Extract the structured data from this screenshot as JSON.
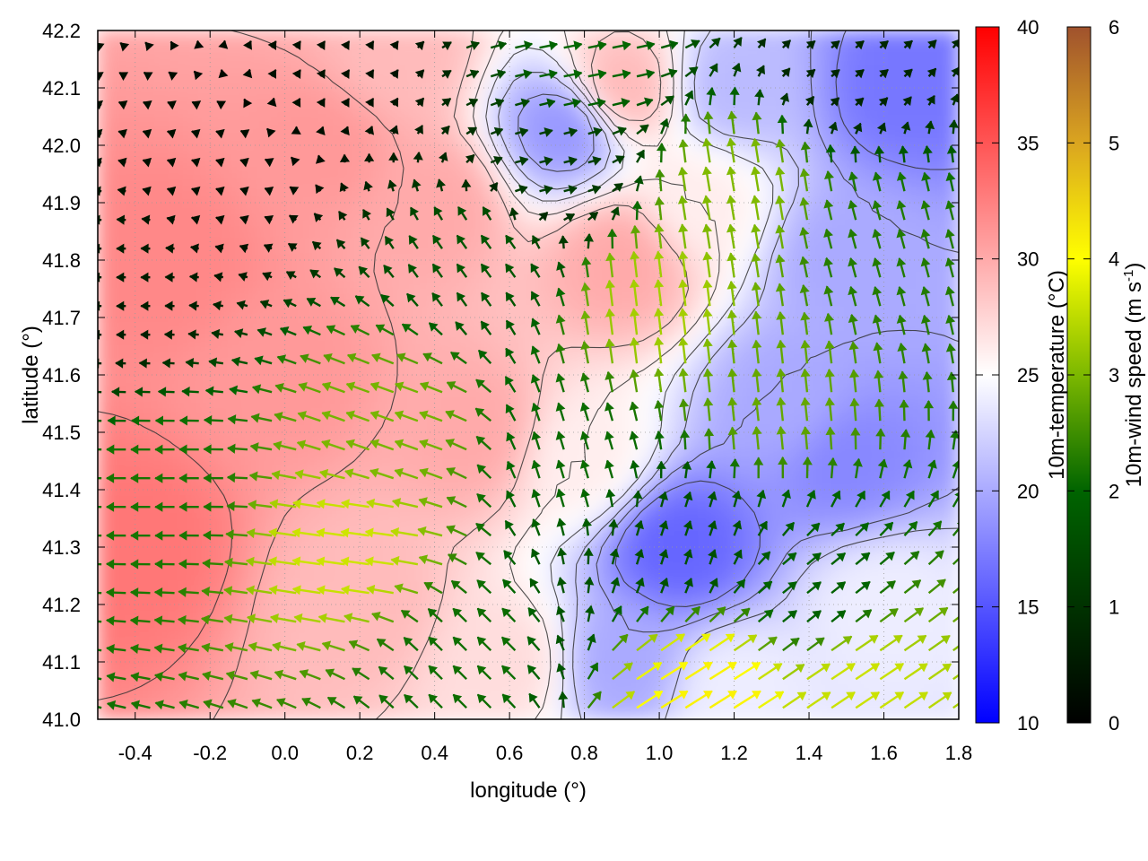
{
  "chart_data": {
    "type": "heatmap",
    "subtype": "map with temperature shading, contour lines and wind vectors",
    "xlabel": "longitude (°)",
    "ylabel": "latitude (°)",
    "xlim": [
      -0.5,
      1.8
    ],
    "ylim": [
      41.0,
      42.2
    ],
    "x_ticks": [
      "-0.4",
      "-0.2",
      "0.0",
      "0.2",
      "0.4",
      "0.6",
      "0.8",
      "1.0",
      "1.2",
      "1.4",
      "1.6",
      "1.8"
    ],
    "y_ticks": [
      "41.0",
      "41.1",
      "41.2",
      "41.3",
      "41.4",
      "41.5",
      "41.6",
      "41.7",
      "41.8",
      "41.9",
      "42.0",
      "42.1",
      "42.2"
    ],
    "grid": true,
    "temperature_colorbar": {
      "label": "10m-temperature (°C)",
      "range": [
        10,
        40
      ],
      "ticks": [
        "10",
        "15",
        "20",
        "25",
        "30",
        "35",
        "40"
      ],
      "colors": [
        "#0000ff",
        "#ffffff",
        "#ff0000"
      ]
    },
    "wind_colorbar": {
      "label_main": "10m-wind speed (m s",
      "label_sup": "-1",
      "label_end": ")",
      "range": [
        0,
        6
      ],
      "ticks": [
        "0",
        "1",
        "2",
        "3",
        "4",
        "5",
        "6"
      ],
      "colors": [
        "#000000",
        "#006400",
        "#7cb800",
        "#ffff00",
        "#daa520",
        "#a0522d"
      ]
    },
    "temperature_field": [
      {
        "lon": -0.4,
        "lat": 41.3,
        "value": 33
      },
      {
        "lon": -0.3,
        "lat": 41.8,
        "value": 32
      },
      {
        "lon": 0.0,
        "lat": 41.6,
        "value": 31
      },
      {
        "lon": 0.1,
        "lat": 42.0,
        "value": 31
      },
      {
        "lon": 0.4,
        "lat": 41.9,
        "value": 30
      },
      {
        "lon": 0.5,
        "lat": 41.5,
        "value": 30
      },
      {
        "lon": 0.2,
        "lat": 41.2,
        "value": 29
      },
      {
        "lon": 0.9,
        "lat": 41.8,
        "value": 30
      },
      {
        "lon": 0.9,
        "lat": 42.1,
        "value": 29
      },
      {
        "lon": 0.3,
        "lat": 42.15,
        "value": 29
      },
      {
        "lon": 0.6,
        "lat": 41.1,
        "value": 27
      },
      {
        "lon": 0.8,
        "lat": 41.45,
        "value": 26
      },
      {
        "lon": 1.05,
        "lat": 41.3,
        "value": 16
      },
      {
        "lon": 0.9,
        "lat": 41.1,
        "value": 20
      },
      {
        "lon": 1.35,
        "lat": 41.55,
        "value": 20
      },
      {
        "lon": 1.5,
        "lat": 41.45,
        "value": 18
      },
      {
        "lon": 1.5,
        "lat": 41.8,
        "value": 20
      },
      {
        "lon": 1.65,
        "lat": 42.1,
        "value": 17
      },
      {
        "lon": 1.2,
        "lat": 42.1,
        "value": 21
      },
      {
        "lon": 0.75,
        "lat": 42.03,
        "value": 19
      },
      {
        "lon": 1.6,
        "lat": 41.2,
        "value": 24
      },
      {
        "lon": 1.2,
        "lat": 41.05,
        "value": 24
      },
      {
        "lon": 1.1,
        "lat": 41.9,
        "value": 26
      }
    ],
    "wind_regions": [
      {
        "lon": -0.45,
        "lat": 41.75,
        "u": -0.6,
        "v": 0.0
      },
      {
        "lon": -0.2,
        "lat": 41.95,
        "u": -0.3,
        "v": 0.1
      },
      {
        "lon": 0.1,
        "lat": 42.15,
        "u": 0.2,
        "v": 0.3
      },
      {
        "lon": -0.3,
        "lat": 41.4,
        "u": -2.2,
        "v": 0.0
      },
      {
        "lon": 0.2,
        "lat": 41.3,
        "u": -3.6,
        "v": 0.5
      },
      {
        "lon": 0.3,
        "lat": 41.5,
        "u": -2.8,
        "v": 1.0
      },
      {
        "lon": 0.55,
        "lat": 41.8,
        "u": -1.0,
        "v": 1.4
      },
      {
        "lon": 0.5,
        "lat": 41.1,
        "u": -1.5,
        "v": 1.5
      },
      {
        "lon": 0.8,
        "lat": 41.45,
        "u": -0.6,
        "v": 2.0
      },
      {
        "lon": 1.0,
        "lat": 41.7,
        "u": -0.4,
        "v": 3.3
      },
      {
        "lon": 1.2,
        "lat": 41.9,
        "u": -0.5,
        "v": 3.0
      },
      {
        "lon": 1.3,
        "lat": 41.55,
        "u": -0.3,
        "v": 2.8
      },
      {
        "lon": 1.6,
        "lat": 41.8,
        "u": -0.6,
        "v": 2.2
      },
      {
        "lon": 1.05,
        "lat": 41.3,
        "u": 0.5,
        "v": 1.5
      },
      {
        "lon": 1.4,
        "lat": 41.2,
        "u": 1.5,
        "v": 1.2
      },
      {
        "lon": 1.5,
        "lat": 41.05,
        "u": 3.0,
        "v": 2.0
      },
      {
        "lon": 1.1,
        "lat": 41.03,
        "u": 3.5,
        "v": 2.2
      },
      {
        "lon": 0.8,
        "lat": 42.15,
        "u": 2.0,
        "v": 0.4
      },
      {
        "lon": 0.7,
        "lat": 41.95,
        "u": 1.2,
        "v": 0.3
      },
      {
        "lon": 1.5,
        "lat": 42.15,
        "u": 0.6,
        "v": 0.5
      }
    ]
  }
}
